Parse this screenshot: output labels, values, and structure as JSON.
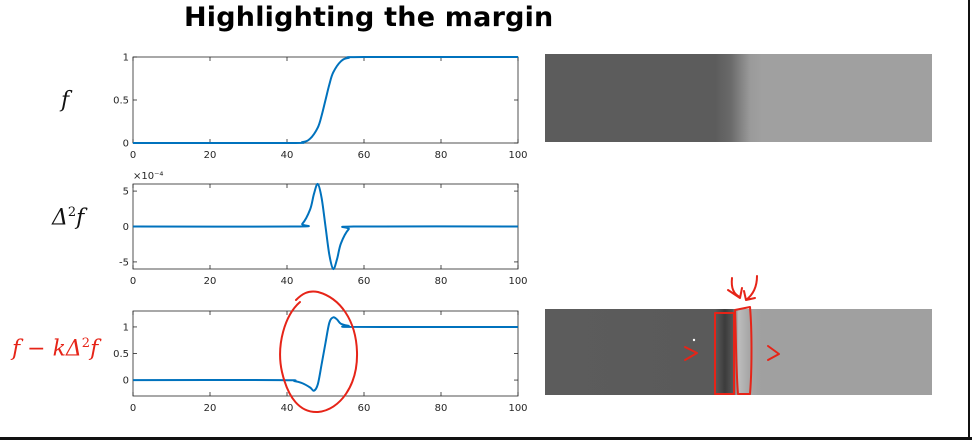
{
  "title": "Highlighting the margin",
  "equations": {
    "f": "f",
    "laplacian_base": "Δ",
    "laplacian_exp": "2",
    "laplacian_tail": "f",
    "sharp_head": "f − kΔ",
    "sharp_exp": "2",
    "sharp_tail": "f"
  },
  "colors": {
    "curve": "#0072bd",
    "annotation": "#e62418",
    "image_dark": "#5c5c5c",
    "image_light": "#a0a0a0"
  },
  "chart_data": [
    {
      "type": "line",
      "title": "",
      "xlabel": "",
      "ylabel": "",
      "xlim": [
        0,
        100
      ],
      "ylim": [
        0,
        1
      ],
      "xticks": [
        "0",
        "20",
        "40",
        "60",
        "80",
        "100"
      ],
      "yticks": [
        "0",
        "0.5",
        "1"
      ],
      "exponent_label": "",
      "series": [
        {
          "x": [
            0,
            40,
            44,
            46,
            48,
            49,
            50,
            51,
            52,
            54,
            56,
            60,
            100
          ],
          "y": [
            0,
            0,
            0.01,
            0.05,
            0.18,
            0.32,
            0.5,
            0.68,
            0.82,
            0.95,
            0.99,
            1,
            1
          ]
        }
      ]
    },
    {
      "type": "line",
      "title": "",
      "xlabel": "",
      "ylabel": "",
      "xlim": [
        0,
        100
      ],
      "ylim": [
        -6,
        6
      ],
      "xticks": [
        "0",
        "20",
        "40",
        "60",
        "80",
        "100"
      ],
      "yticks": [
        "-5",
        "0",
        "5"
      ],
      "exponent_label": "×10⁻⁴",
      "series": [
        {
          "x": [
            0,
            42,
            44,
            46,
            47,
            48,
            49,
            50,
            51,
            52,
            53,
            54,
            56,
            58,
            100
          ],
          "y": [
            0,
            0,
            0.4,
            2.4,
            4.6,
            6,
            4,
            0,
            -4,
            -6,
            -4.6,
            -2.4,
            -0.4,
            0,
            0
          ]
        }
      ]
    },
    {
      "type": "line",
      "title": "",
      "xlabel": "",
      "ylabel": "",
      "xlim": [
        0,
        100
      ],
      "ylim": [
        -0.3,
        1.3
      ],
      "xticks": [
        "0",
        "20",
        "40",
        "60",
        "80",
        "100"
      ],
      "yticks": [
        "0",
        "0.5",
        "1"
      ],
      "exponent_label": "",
      "series": [
        {
          "x": [
            0,
            38,
            42,
            44,
            46,
            47,
            48,
            49,
            50,
            51,
            52,
            53,
            54,
            56,
            58,
            100
          ],
          "y": [
            0,
            0,
            -0.02,
            -0.06,
            -0.14,
            -0.2,
            -0.08,
            0.3,
            0.7,
            1.08,
            1.18,
            1.14,
            1.06,
            1.02,
            1,
            1
          ]
        }
      ]
    }
  ],
  "images": {
    "original_edge_fraction": 0.49,
    "sharpened_edge_fraction": 0.49
  }
}
